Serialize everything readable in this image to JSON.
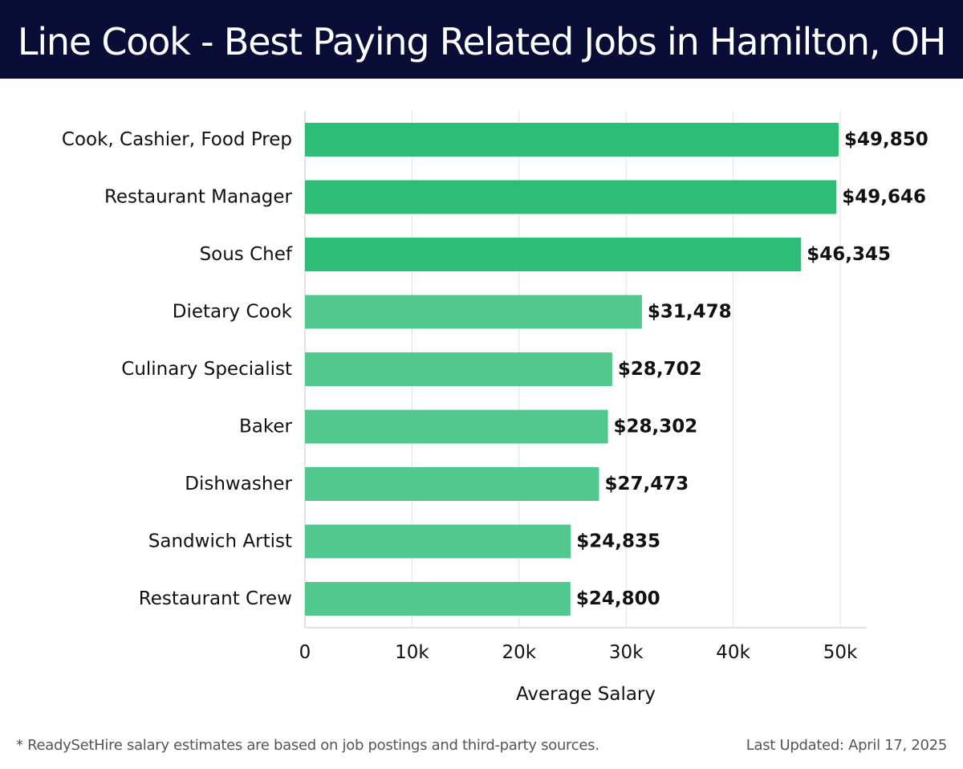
{
  "header": {
    "title": "Line Cook - Best Paying Related Jobs in Hamilton, OH"
  },
  "chart_data": {
    "type": "bar",
    "orientation": "horizontal",
    "categories": [
      "Cook, Cashier, Food Prep",
      "Restaurant Manager",
      "Sous Chef",
      "Dietary Cook",
      "Culinary Specialist",
      "Baker",
      "Dishwasher",
      "Sandwich Artist",
      "Restaurant Crew"
    ],
    "values": [
      49850,
      49646,
      46345,
      31478,
      28702,
      28302,
      27473,
      24835,
      24800
    ],
    "value_labels": [
      "$49,850",
      "$49,646",
      "$46,345",
      "$31,478",
      "$28,702",
      "$28,302",
      "$27,473",
      "$24,835",
      "$24,800"
    ],
    "xlabel": "Average Salary",
    "xlim": [
      0,
      52500
    ],
    "xticks": [
      0,
      10000,
      20000,
      30000,
      40000,
      50000
    ],
    "xtick_labels": [
      "0",
      "10k",
      "20k",
      "30k",
      "40k",
      "50k"
    ],
    "grid": "vertical",
    "colors": {
      "top_bars": "#2dbd77",
      "other_bars": "#51c98e",
      "gridline": "#e6e6e6",
      "axis": "#d0d0d0"
    },
    "highlighted_count": 3
  },
  "footer": {
    "footnote": "* ReadySetHire salary estimates are based on job postings and third-party sources.",
    "updated": "Last Updated: April 17, 2025"
  }
}
